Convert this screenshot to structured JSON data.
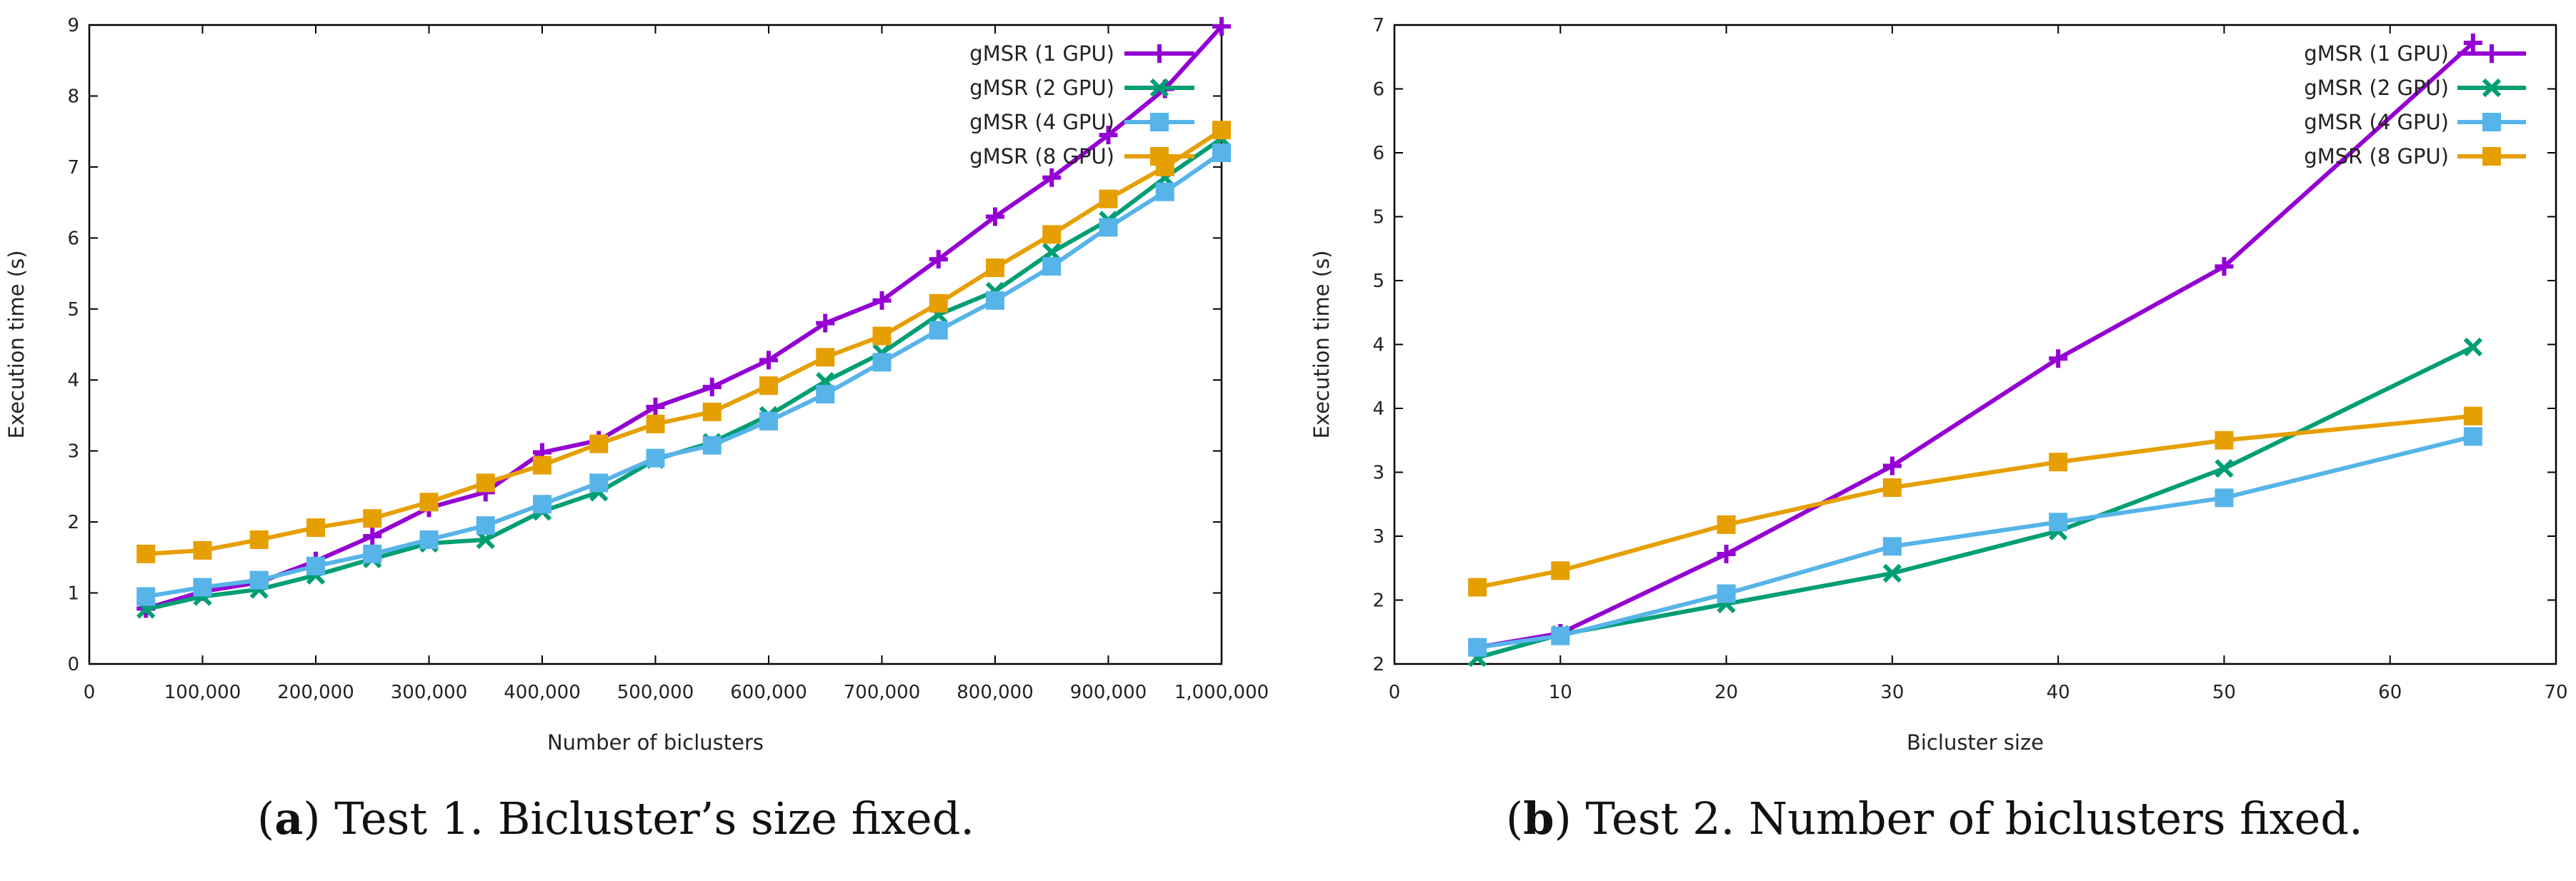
{
  "captions": [
    {
      "letter": "a",
      "text": ") Test 1. Bicluster’s size fixed."
    },
    {
      "letter": "b",
      "text": ") Test 2. Number of biclusters fixed."
    }
  ],
  "colors": {
    "s1": "#9400d3",
    "s2": "#009e73",
    "s3": "#56b4e9",
    "s4": "#e69f00"
  },
  "chart_data": [
    {
      "type": "line",
      "title": "",
      "xlabel": "Number of biclusters",
      "ylabel": "Execution time (s)",
      "xlim": [
        0,
        1000000
      ],
      "ylim": [
        0,
        9
      ],
      "x_ticks": [
        0,
        100000,
        200000,
        300000,
        400000,
        500000,
        600000,
        700000,
        800000,
        900000,
        1000000
      ],
      "x_tick_labels": [
        "0",
        "100,000",
        "200,000",
        "300,000",
        "400,000",
        "500,000",
        "600,000",
        "700,000",
        "800,000",
        "900,000",
        "1,000,000"
      ],
      "y_ticks": [
        0,
        1,
        2,
        3,
        4,
        5,
        6,
        7,
        8,
        9
      ],
      "y_tick_labels": [
        "0",
        "1",
        "2",
        "3",
        "4",
        "5",
        "6",
        "7",
        "8",
        "9"
      ],
      "x": [
        50000,
        100000,
        150000,
        200000,
        250000,
        300000,
        350000,
        400000,
        450000,
        500000,
        550000,
        600000,
        650000,
        700000,
        750000,
        800000,
        850000,
        900000,
        950000,
        1000000
      ],
      "legend_position": "top-right",
      "series": [
        {
          "name": "gMSR (1 GPU)",
          "marker": "plus",
          "color": "#9400d3",
          "values": [
            0.78,
            1.02,
            1.15,
            1.45,
            1.8,
            2.2,
            2.42,
            2.98,
            3.15,
            3.62,
            3.9,
            4.28,
            4.8,
            5.12,
            5.7,
            6.3,
            6.85,
            7.45,
            8.1,
            8.98
          ]
        },
        {
          "name": "gMSR (2 GPU)",
          "marker": "x",
          "color": "#009e73",
          "values": [
            0.77,
            0.95,
            1.05,
            1.25,
            1.48,
            1.7,
            1.75,
            2.15,
            2.42,
            2.88,
            3.12,
            3.5,
            3.98,
            4.38,
            4.92,
            5.25,
            5.8,
            6.25,
            6.85,
            7.4
          ]
        },
        {
          "name": "gMSR (4 GPU)",
          "marker": "square",
          "color": "#56b4e9",
          "values": [
            0.95,
            1.08,
            1.18,
            1.38,
            1.55,
            1.75,
            1.95,
            2.25,
            2.55,
            2.9,
            3.08,
            3.42,
            3.8,
            4.25,
            4.7,
            5.12,
            5.6,
            6.15,
            6.65,
            7.2
          ]
        },
        {
          "name": "gMSR (8 GPU)",
          "marker": "square",
          "color": "#e69f00",
          "values": [
            1.55,
            1.6,
            1.75,
            1.92,
            2.05,
            2.28,
            2.55,
            2.8,
            3.1,
            3.38,
            3.55,
            3.92,
            4.32,
            4.62,
            5.08,
            5.58,
            6.05,
            6.55,
            7.0,
            7.52
          ]
        }
      ]
    },
    {
      "type": "line",
      "title": "",
      "xlabel": "Bicluster size",
      "ylabel": "Execution time (s)",
      "xlim": [
        0,
        70
      ],
      "ylim": [
        2,
        7
      ],
      "x_ticks": [
        0,
        10,
        20,
        30,
        40,
        50,
        60,
        70
      ],
      "x_tick_labels": [
        "0",
        "10",
        "20",
        "30",
        "40",
        "50",
        "60",
        "70"
      ],
      "y_ticks": [
        2,
        2.5,
        3,
        3.5,
        4,
        4.5,
        5,
        5.5,
        6,
        6.5,
        7
      ],
      "y_tick_labels": [
        "2",
        "2",
        "3",
        "3",
        "4",
        "4",
        "5",
        "5",
        "6",
        "6",
        "7"
      ],
      "x": [
        5,
        10,
        20,
        30,
        40,
        50,
        65
      ],
      "legend_position": "top-right",
      "series": [
        {
          "name": "gMSR (1 GPU)",
          "marker": "plus",
          "color": "#9400d3",
          "values": [
            2.13,
            2.24,
            2.86,
            3.55,
            4.39,
            5.11,
            6.86
          ]
        },
        {
          "name": "gMSR (2 GPU)",
          "marker": "x",
          "color": "#009e73",
          "values": [
            2.05,
            2.23,
            2.47,
            2.71,
            3.04,
            3.53,
            4.48
          ]
        },
        {
          "name": "gMSR (4 GPU)",
          "marker": "square",
          "color": "#56b4e9",
          "values": [
            2.13,
            2.22,
            2.55,
            2.92,
            3.11,
            3.3,
            3.78
          ]
        },
        {
          "name": "gMSR (8 GPU)",
          "marker": "square",
          "color": "#e69f00",
          "values": [
            2.6,
            2.73,
            3.09,
            3.38,
            3.58,
            3.75,
            3.94
          ]
        }
      ]
    }
  ]
}
